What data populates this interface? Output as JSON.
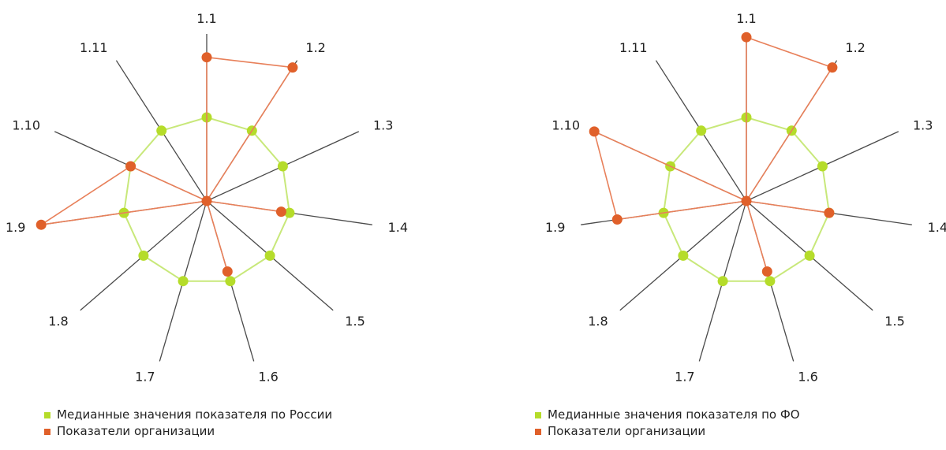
{
  "colors": {
    "axis": "#4a4a4a",
    "median_line": "#c8e87a",
    "median_point": "#b5dc2a",
    "org_line": "#e8805a",
    "org_point": "#e0602a"
  },
  "chart_data": [
    {
      "type": "radar",
      "categories": [
        "1.1",
        "1.2",
        "1.3",
        "1.4",
        "1.5",
        "1.6",
        "1.7",
        "1.8",
        "1.9",
        "1.10",
        "1.11"
      ],
      "max": 1.0,
      "series": [
        {
          "name": "Медианные значения показателя по России",
          "values": [
            0.5,
            0.5,
            0.5,
            0.5,
            0.5,
            0.5,
            0.5,
            0.5,
            0.5,
            0.5,
            0.5
          ]
        },
        {
          "name": "Показатели организации",
          "values": [
            0.86,
            0.95,
            0,
            0.45,
            0,
            0.44,
            0,
            0,
            1.0,
            0.5,
            0
          ]
        }
      ]
    },
    {
      "type": "radar",
      "categories": [
        "1.1",
        "1.2",
        "1.3",
        "1.4",
        "1.5",
        "1.6",
        "1.7",
        "1.8",
        "1.9",
        "1.10",
        "1.11"
      ],
      "max": 1.0,
      "series": [
        {
          "name": "Медианные значения показателя по ФО",
          "values": [
            0.5,
            0.5,
            0.5,
            0.5,
            0.5,
            0.5,
            0.5,
            0.5,
            0.5,
            0.5,
            0.5
          ]
        },
        {
          "name": "Показатели организации",
          "values": [
            0.98,
            0.95,
            0,
            0.5,
            0,
            0.44,
            0,
            0,
            0.78,
            1.0,
            0
          ]
        }
      ]
    }
  ]
}
